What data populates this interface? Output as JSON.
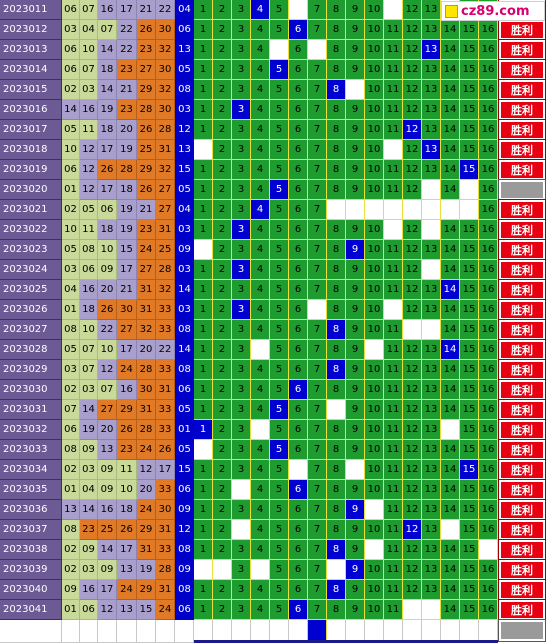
{
  "logo": {
    "text": "cz89.com",
    "icon": "yellow-square-icon"
  },
  "status_label": "胜利",
  "colors": {
    "issue_bg": "#6b5a93",
    "hit_blue": "#0000d0",
    "grid_green": "#1f9c2f",
    "win_red": "#e60012",
    "orange": "#e07a27",
    "lavender": "#a99fcc",
    "pale_green": "#c8d99a"
  },
  "draws": [
    {
      "issue": "2023011",
      "nums": [
        "06",
        "07",
        "16",
        "17",
        "21",
        "22",
        "04"
      ],
      "status": "win"
    },
    {
      "issue": "2023012",
      "nums": [
        "03",
        "04",
        "07",
        "22",
        "26",
        "30",
        "06"
      ],
      "status": "win"
    },
    {
      "issue": "2023013",
      "nums": [
        "06",
        "10",
        "14",
        "22",
        "23",
        "32",
        "13"
      ],
      "status": "win"
    },
    {
      "issue": "2023014",
      "nums": [
        "06",
        "07",
        "18",
        "23",
        "27",
        "30",
        "05"
      ],
      "status": "win"
    },
    {
      "issue": "2023015",
      "nums": [
        "02",
        "03",
        "14",
        "21",
        "29",
        "32",
        "08"
      ],
      "status": "win"
    },
    {
      "issue": "2023016",
      "nums": [
        "14",
        "16",
        "19",
        "23",
        "28",
        "30",
        "03"
      ],
      "status": "win"
    },
    {
      "issue": "2023017",
      "nums": [
        "05",
        "11",
        "18",
        "20",
        "26",
        "28",
        "12"
      ],
      "status": "win"
    },
    {
      "issue": "2023018",
      "nums": [
        "10",
        "12",
        "17",
        "19",
        "25",
        "31",
        "13"
      ],
      "status": "win"
    },
    {
      "issue": "2023019",
      "nums": [
        "06",
        "12",
        "26",
        "28",
        "29",
        "32",
        "15"
      ],
      "status": "win"
    },
    {
      "issue": "2023020",
      "nums": [
        "01",
        "12",
        "17",
        "18",
        "26",
        "27",
        "05"
      ],
      "status": "grey"
    },
    {
      "issue": "2023021",
      "nums": [
        "02",
        "05",
        "06",
        "19",
        "21",
        "27",
        "04"
      ],
      "status": "win"
    },
    {
      "issue": "2023022",
      "nums": [
        "10",
        "11",
        "18",
        "19",
        "23",
        "31",
        "03"
      ],
      "status": "win"
    },
    {
      "issue": "2023023",
      "nums": [
        "05",
        "08",
        "10",
        "15",
        "24",
        "25",
        "09"
      ],
      "status": "win"
    },
    {
      "issue": "2023024",
      "nums": [
        "03",
        "06",
        "09",
        "17",
        "27",
        "28",
        "03"
      ],
      "status": "win"
    },
    {
      "issue": "2023025",
      "nums": [
        "04",
        "16",
        "20",
        "21",
        "31",
        "32",
        "14"
      ],
      "status": "win"
    },
    {
      "issue": "2023026",
      "nums": [
        "01",
        "18",
        "26",
        "30",
        "31",
        "33",
        "03"
      ],
      "status": "win"
    },
    {
      "issue": "2023027",
      "nums": [
        "08",
        "10",
        "22",
        "27",
        "32",
        "33",
        "08"
      ],
      "status": "win"
    },
    {
      "issue": "2023028",
      "nums": [
        "05",
        "07",
        "10",
        "17",
        "20",
        "22",
        "14"
      ],
      "status": "win"
    },
    {
      "issue": "2023029",
      "nums": [
        "03",
        "07",
        "12",
        "24",
        "28",
        "33",
        "08"
      ],
      "status": "win"
    },
    {
      "issue": "2023030",
      "nums": [
        "02",
        "03",
        "07",
        "16",
        "30",
        "31",
        "06"
      ],
      "status": "win"
    },
    {
      "issue": "2023031",
      "nums": [
        "07",
        "14",
        "27",
        "29",
        "31",
        "33",
        "05"
      ],
      "status": "win"
    },
    {
      "issue": "2023032",
      "nums": [
        "06",
        "19",
        "20",
        "26",
        "28",
        "33",
        "01"
      ],
      "status": "win"
    },
    {
      "issue": "2023033",
      "nums": [
        "08",
        "09",
        "13",
        "23",
        "24",
        "26",
        "05"
      ],
      "status": "win"
    },
    {
      "issue": "2023034",
      "nums": [
        "02",
        "03",
        "09",
        "11",
        "12",
        "17",
        "15"
      ],
      "status": "win"
    },
    {
      "issue": "2023035",
      "nums": [
        "01",
        "04",
        "09",
        "10",
        "20",
        "33",
        "06"
      ],
      "status": "win"
    },
    {
      "issue": "2023036",
      "nums": [
        "13",
        "14",
        "16",
        "18",
        "24",
        "30",
        "09"
      ],
      "status": "win"
    },
    {
      "issue": "2023037",
      "nums": [
        "08",
        "23",
        "25",
        "26",
        "29",
        "31",
        "12"
      ],
      "status": "win"
    },
    {
      "issue": "2023038",
      "nums": [
        "02",
        "09",
        "14",
        "17",
        "31",
        "33",
        "08"
      ],
      "status": "win"
    },
    {
      "issue": "2023039",
      "nums": [
        "02",
        "03",
        "09",
        "13",
        "19",
        "28",
        "09"
      ],
      "status": "win"
    },
    {
      "issue": "2023040",
      "nums": [
        "09",
        "16",
        "17",
        "24",
        "29",
        "31",
        "08"
      ],
      "status": "win"
    },
    {
      "issue": "2023041",
      "nums": [
        "01",
        "06",
        "12",
        "13",
        "15",
        "24",
        "06"
      ],
      "status": "win"
    }
  ],
  "grid_numbers": [
    "1",
    "2",
    "3",
    "4",
    "5",
    "6",
    "7",
    "8",
    "9",
    "10",
    "11",
    "12",
    "13",
    "14",
    "15",
    "16"
  ],
  "grid_blank": [
    [
      6,
      11,
      14
    ],
    [],
    [
      5,
      7
    ],
    [],
    [
      9
    ],
    [],
    [],
    [
      1,
      11
    ],
    [],
    [
      13,
      15
    ],
    [
      8,
      9,
      10,
      11,
      12,
      13,
      14,
      15
    ],
    [
      11,
      13
    ],
    [
      1
    ],
    [
      13
    ],
    [],
    [
      7,
      11
    ],
    [
      12,
      13
    ],
    [
      4,
      10
    ],
    [],
    [],
    [
      8
    ],
    [
      4,
      14
    ],
    [
      1
    ],
    [
      6,
      9
    ],
    [
      3
    ],
    [
      10
    ],
    [
      3,
      14
    ],
    [
      10,
      16
    ],
    [
      1,
      2,
      4,
      8
    ],
    [],
    [
      12,
      13
    ]
  ]
}
